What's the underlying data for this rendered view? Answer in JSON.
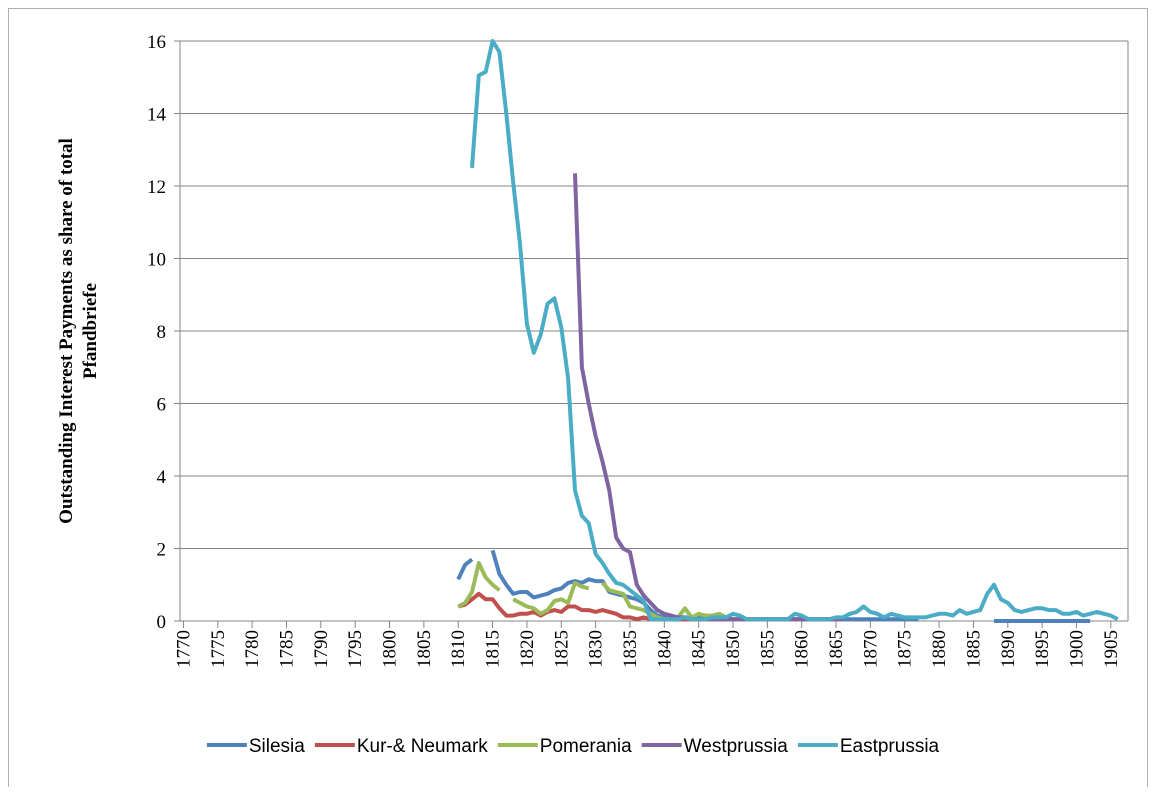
{
  "chart_data": {
    "type": "line",
    "ylabel": [
      "Outstanding Interest Payments as share of total",
      "Pfandbriefe"
    ],
    "x": [
      1810,
      1811,
      1812,
      1813,
      1814,
      1815,
      1816,
      1817,
      1818,
      1819,
      1820,
      1821,
      1822,
      1823,
      1824,
      1825,
      1826,
      1827,
      1828,
      1829,
      1830,
      1831,
      1832,
      1833,
      1834,
      1835,
      1836,
      1837,
      1838,
      1839,
      1840,
      1841,
      1842,
      1843,
      1844,
      1845,
      1846,
      1847,
      1848,
      1849,
      1850,
      1851,
      1852,
      1853,
      1854,
      1855,
      1856,
      1857,
      1858,
      1859,
      1860,
      1861,
      1862,
      1863,
      1864,
      1865,
      1866,
      1867,
      1868,
      1869,
      1870,
      1871,
      1872,
      1873,
      1874,
      1875,
      1876,
      1877,
      1878,
      1879,
      1880,
      1881,
      1882,
      1883,
      1884,
      1885,
      1886,
      1887,
      1888,
      1889,
      1890,
      1891,
      1892,
      1893,
      1894,
      1895,
      1896,
      1897,
      1898,
      1899,
      1900,
      1901,
      1902,
      1903,
      1904,
      1905,
      1906
    ],
    "series": [
      {
        "name": "Silesia",
        "color": "#4f81bd",
        "values": [
          1.15,
          1.55,
          1.7,
          null,
          null,
          1.95,
          1.3,
          1.0,
          0.75,
          0.8,
          0.8,
          0.65,
          0.7,
          0.75,
          0.85,
          0.9,
          1.05,
          1.1,
          1.05,
          1.15,
          1.1,
          1.1,
          0.8,
          0.75,
          0.7,
          0.65,
          0.6,
          0.5,
          0.3,
          0.15,
          0.1,
          0.1,
          0.1,
          0.1,
          0.1,
          0.1,
          0.1,
          0.1,
          0.1,
          0.1,
          0.05,
          0.05,
          0.05,
          0.05,
          0.05,
          0.05,
          0.05,
          0.05,
          0.05,
          0.05,
          0.05,
          0.05,
          0.05,
          0.05,
          0.05,
          0.05,
          0.05,
          0.05,
          0.05,
          0.05,
          0.05,
          0.05,
          0.05,
          0.05,
          0.05,
          0.05,
          0.05,
          0.05,
          null,
          null,
          null,
          null,
          null,
          null,
          null,
          null,
          null,
          null,
          0,
          0,
          0,
          0,
          0,
          0,
          0,
          0,
          0,
          0,
          0,
          0,
          0,
          0,
          0,
          null,
          null,
          null,
          null
        ]
      },
      {
        "name": "Kur-& Neumark",
        "color": "#c0504d",
        "values": [
          0.4,
          0.45,
          0.6,
          0.75,
          0.6,
          0.6,
          0.35,
          0.15,
          0.15,
          0.2,
          0.2,
          0.25,
          0.15,
          0.25,
          0.3,
          0.25,
          0.4,
          0.4,
          0.3,
          0.3,
          0.25,
          0.3,
          0.25,
          0.2,
          0.1,
          0.1,
          0.05,
          0.1,
          0.05,
          0.05,
          0.05,
          0.05,
          0.05,
          0.05,
          0.05,
          0.05,
          0.05,
          0.05,
          0.05,
          0.05,
          0.05,
          0.05,
          0.05,
          0.05,
          0.05,
          0.05,
          0.05,
          0.05,
          0.05,
          0.05,
          0.05,
          0.05,
          0.05,
          0.05,
          0.05,
          0.05,
          null,
          null,
          null,
          null,
          null,
          null,
          null,
          null,
          null,
          null,
          null,
          null,
          null,
          null,
          null,
          null,
          null,
          null,
          null,
          null,
          null,
          null,
          null,
          null,
          null,
          null,
          null,
          null,
          null,
          null,
          null,
          null,
          null,
          null,
          null,
          null,
          null,
          null,
          null,
          null,
          null
        ]
      },
      {
        "name": "Pomerania",
        "color": "#9bbb59",
        "values": [
          0.4,
          0.5,
          0.8,
          1.6,
          1.2,
          1.0,
          0.85,
          null,
          0.6,
          0.5,
          0.4,
          0.35,
          0.2,
          0.3,
          0.55,
          0.6,
          0.5,
          1.05,
          0.95,
          0.9,
          null,
          1.05,
          0.85,
          0.8,
          0.75,
          0.4,
          0.35,
          0.3,
          0.2,
          0.1,
          0.05,
          0.05,
          0.1,
          0.35,
          0.1,
          0.2,
          0.15,
          0.15,
          0.2,
          0.1,
          0.05,
          0.05,
          0.05,
          0.05,
          0.05,
          0.05,
          0.05,
          0.05,
          0.05,
          0.05,
          0.05,
          null,
          null,
          null,
          null,
          null,
          null,
          null,
          null,
          null,
          null,
          null,
          null,
          null,
          null,
          null,
          null,
          null,
          null,
          null,
          null,
          null,
          null,
          null,
          null,
          null,
          null,
          null,
          null,
          null,
          null,
          null,
          null,
          null,
          null,
          null,
          null,
          null,
          null,
          null,
          null,
          null,
          null,
          null,
          null,
          null,
          null
        ]
      },
      {
        "name": "Westprussia",
        "color": "#8064a2",
        "values": [
          null,
          null,
          null,
          null,
          null,
          null,
          null,
          null,
          null,
          null,
          null,
          null,
          null,
          null,
          null,
          null,
          null,
          12.35,
          7.0,
          6.0,
          5.1,
          4.4,
          3.6,
          2.3,
          2.0,
          1.9,
          1.0,
          0.7,
          0.5,
          0.3,
          0.2,
          0.15,
          0.1,
          0.1,
          0.05,
          0.05,
          0.05,
          0.05,
          0.05,
          0.05,
          0.05,
          0.05,
          0.05,
          0.05,
          0.05,
          0.05,
          0.05,
          0.05,
          0.05,
          0.05,
          0.05,
          0.05,
          0.05,
          0.05,
          0.05,
          0.05,
          0.05,
          null,
          null,
          null,
          null,
          null,
          null,
          null,
          null,
          null,
          null,
          null,
          null,
          null,
          null,
          null,
          null,
          null,
          null,
          null,
          null,
          null,
          null,
          null,
          null,
          null,
          null,
          null,
          null,
          null,
          null,
          null,
          null,
          null,
          null,
          null,
          null,
          null,
          null,
          null,
          null
        ]
      },
      {
        "name": "Eastprussia",
        "color": "#4bacc6",
        "values": [
          null,
          null,
          12.5,
          15.05,
          15.15,
          16.0,
          15.7,
          14.0,
          12.1,
          10.4,
          8.2,
          7.4,
          7.9,
          8.75,
          8.9,
          8.1,
          6.7,
          3.6,
          2.9,
          2.7,
          1.85,
          1.6,
          1.3,
          1.05,
          1.0,
          0.85,
          0.7,
          0.55,
          0.05,
          0.05,
          0.05,
          0.05,
          0.05,
          0.1,
          0.05,
          0.05,
          0.05,
          0.1,
          0.1,
          0.1,
          0.2,
          0.15,
          0.05,
          0.05,
          0.05,
          0.05,
          0.05,
          0.05,
          0.05,
          0.2,
          0.15,
          0.05,
          0.05,
          0.05,
          0.05,
          0.1,
          0.1,
          0.2,
          0.25,
          0.4,
          0.25,
          0.2,
          0.1,
          0.2,
          0.15,
          0.1,
          0.1,
          0.1,
          0.1,
          0.15,
          0.2,
          0.2,
          0.15,
          0.3,
          0.2,
          0.25,
          0.3,
          0.75,
          1.0,
          0.6,
          0.5,
          0.3,
          0.25,
          0.3,
          0.35,
          0.35,
          0.3,
          0.3,
          0.2,
          0.2,
          0.25,
          0.15,
          0.2,
          0.25,
          0.2,
          0.15,
          0.05
        ]
      }
    ],
    "xlim": [
      1769.5,
      1907.5
    ],
    "xticks": [
      1770,
      1775,
      1780,
      1785,
      1790,
      1795,
      1800,
      1805,
      1810,
      1815,
      1820,
      1825,
      1830,
      1835,
      1840,
      1845,
      1850,
      1855,
      1860,
      1865,
      1870,
      1875,
      1880,
      1885,
      1890,
      1895,
      1900,
      1905
    ],
    "ylim": [
      0,
      16
    ],
    "yticks": [
      0,
      2,
      4,
      6,
      8,
      10,
      12,
      14,
      16
    ],
    "grid": true,
    "legend": "bottom"
  }
}
